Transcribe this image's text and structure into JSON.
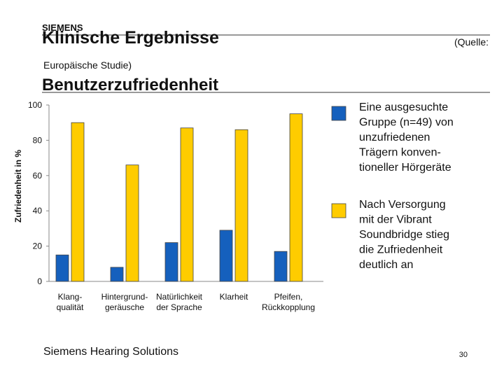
{
  "logo": "SIEMENS",
  "header": {
    "title": "Klinische Ergebnisse",
    "source_open": "(Quelle:",
    "source_close": "Europäische Studie)"
  },
  "chart_data": {
    "type": "bar",
    "title": "Benutzerzufriedenheit",
    "y_label": "Zufriedenheit in %",
    "categories": [
      [
        "Klang-",
        "qualität"
      ],
      [
        "Hintergrund-",
        "geräusche"
      ],
      [
        "Natürlichkeit",
        "der Sprache"
      ],
      [
        "Klarheit"
      ],
      [
        "Pfeifen,",
        "Rückkopplung"
      ]
    ],
    "series": [
      {
        "name": "Eine ausgesuchte\nGruppe (n=49) von\nunzufriedenen\nTrägern konven-\ntioneller Hörgeräte",
        "color": "#1560bd",
        "values": [
          15,
          8,
          22,
          29,
          17
        ]
      },
      {
        "name": "Nach Versorgung\nmit der Vibrant\nSoundbridge stieg\ndie Zufriedenheit\ndeutlich an",
        "color": "#ffcc00",
        "values": [
          90,
          66,
          87,
          86,
          95
        ]
      }
    ],
    "ylim": [
      0,
      100
    ],
    "yticks": [
      0,
      20,
      40,
      60,
      80,
      100
    ],
    "grid": false
  },
  "footer": {
    "company": "Siemens Hearing Solutions",
    "page": "30"
  }
}
